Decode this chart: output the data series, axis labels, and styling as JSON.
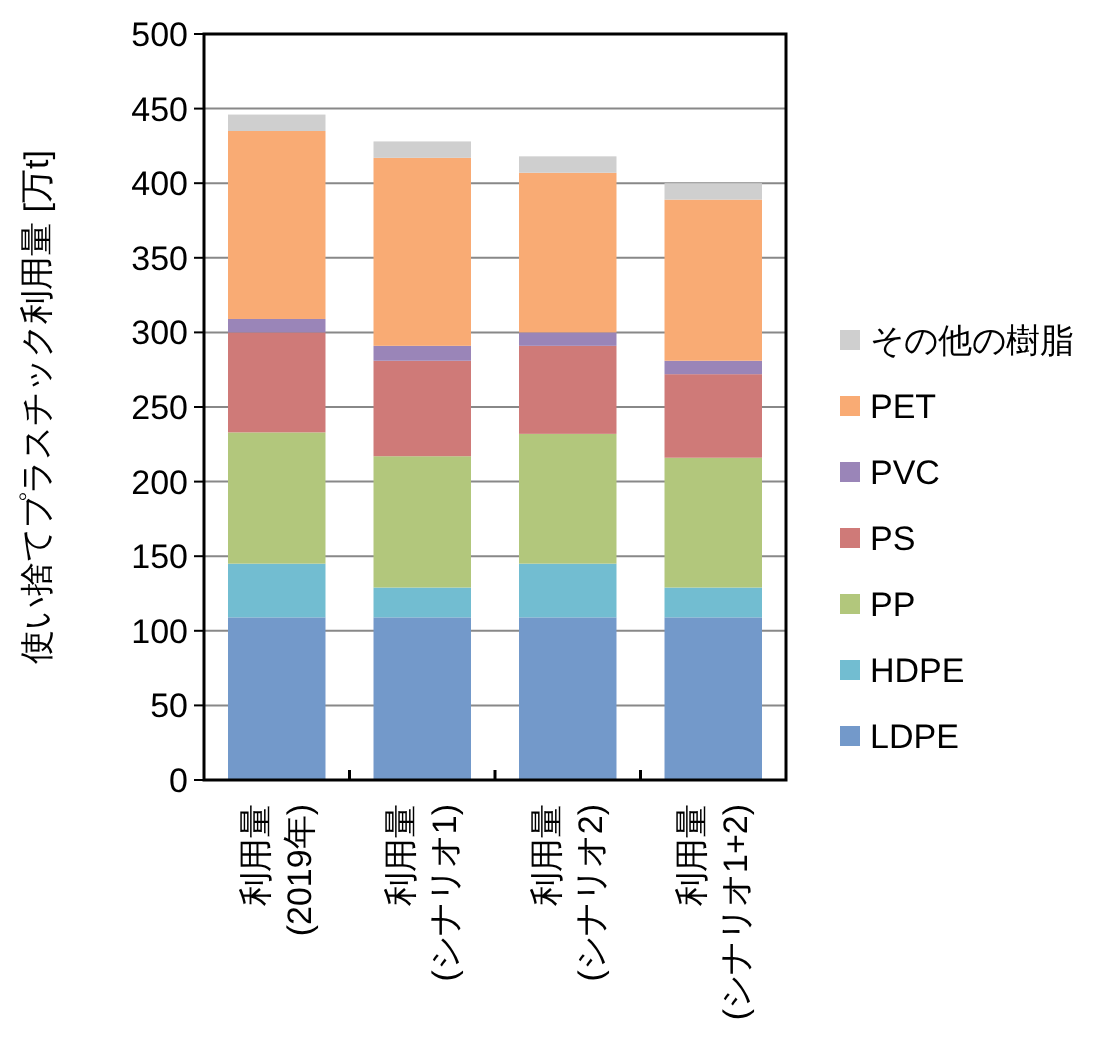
{
  "chart_data": {
    "type": "bar",
    "stacked": true,
    "ylabel": "使い捨てプラスチック利用量 [万t]",
    "categories": [
      "利用量\n(2019年)",
      "利用量\n(シナリオ1)",
      "利用量\n(シナリオ2)",
      "利用量\n(シナリオ1+2)"
    ],
    "series": [
      {
        "name": "LDPE",
        "color": "#7399ca",
        "values": [
          109,
          109,
          109,
          109
        ]
      },
      {
        "name": "HDPE",
        "color": "#72bdd1",
        "values": [
          36,
          20,
          36,
          20
        ]
      },
      {
        "name": "PP",
        "color": "#b2c77c",
        "values": [
          88,
          88,
          87,
          87
        ]
      },
      {
        "name": "PS",
        "color": "#cf7a78",
        "values": [
          67,
          64,
          59,
          56
        ]
      },
      {
        "name": "PVC",
        "color": "#9a85b8",
        "values": [
          9,
          10,
          9,
          9
        ]
      },
      {
        "name": "PET",
        "color": "#f9ab74",
        "values": [
          126,
          126,
          107,
          108
        ]
      },
      {
        "name": "その他の樹脂",
        "color": "#cfcfcf",
        "values": [
          11,
          11,
          11,
          11
        ]
      }
    ],
    "ylim": [
      0,
      500
    ],
    "yticks": [
      0,
      50,
      100,
      150,
      200,
      250,
      300,
      350,
      400,
      450,
      500
    ],
    "grid": "y",
    "legend": "right"
  }
}
